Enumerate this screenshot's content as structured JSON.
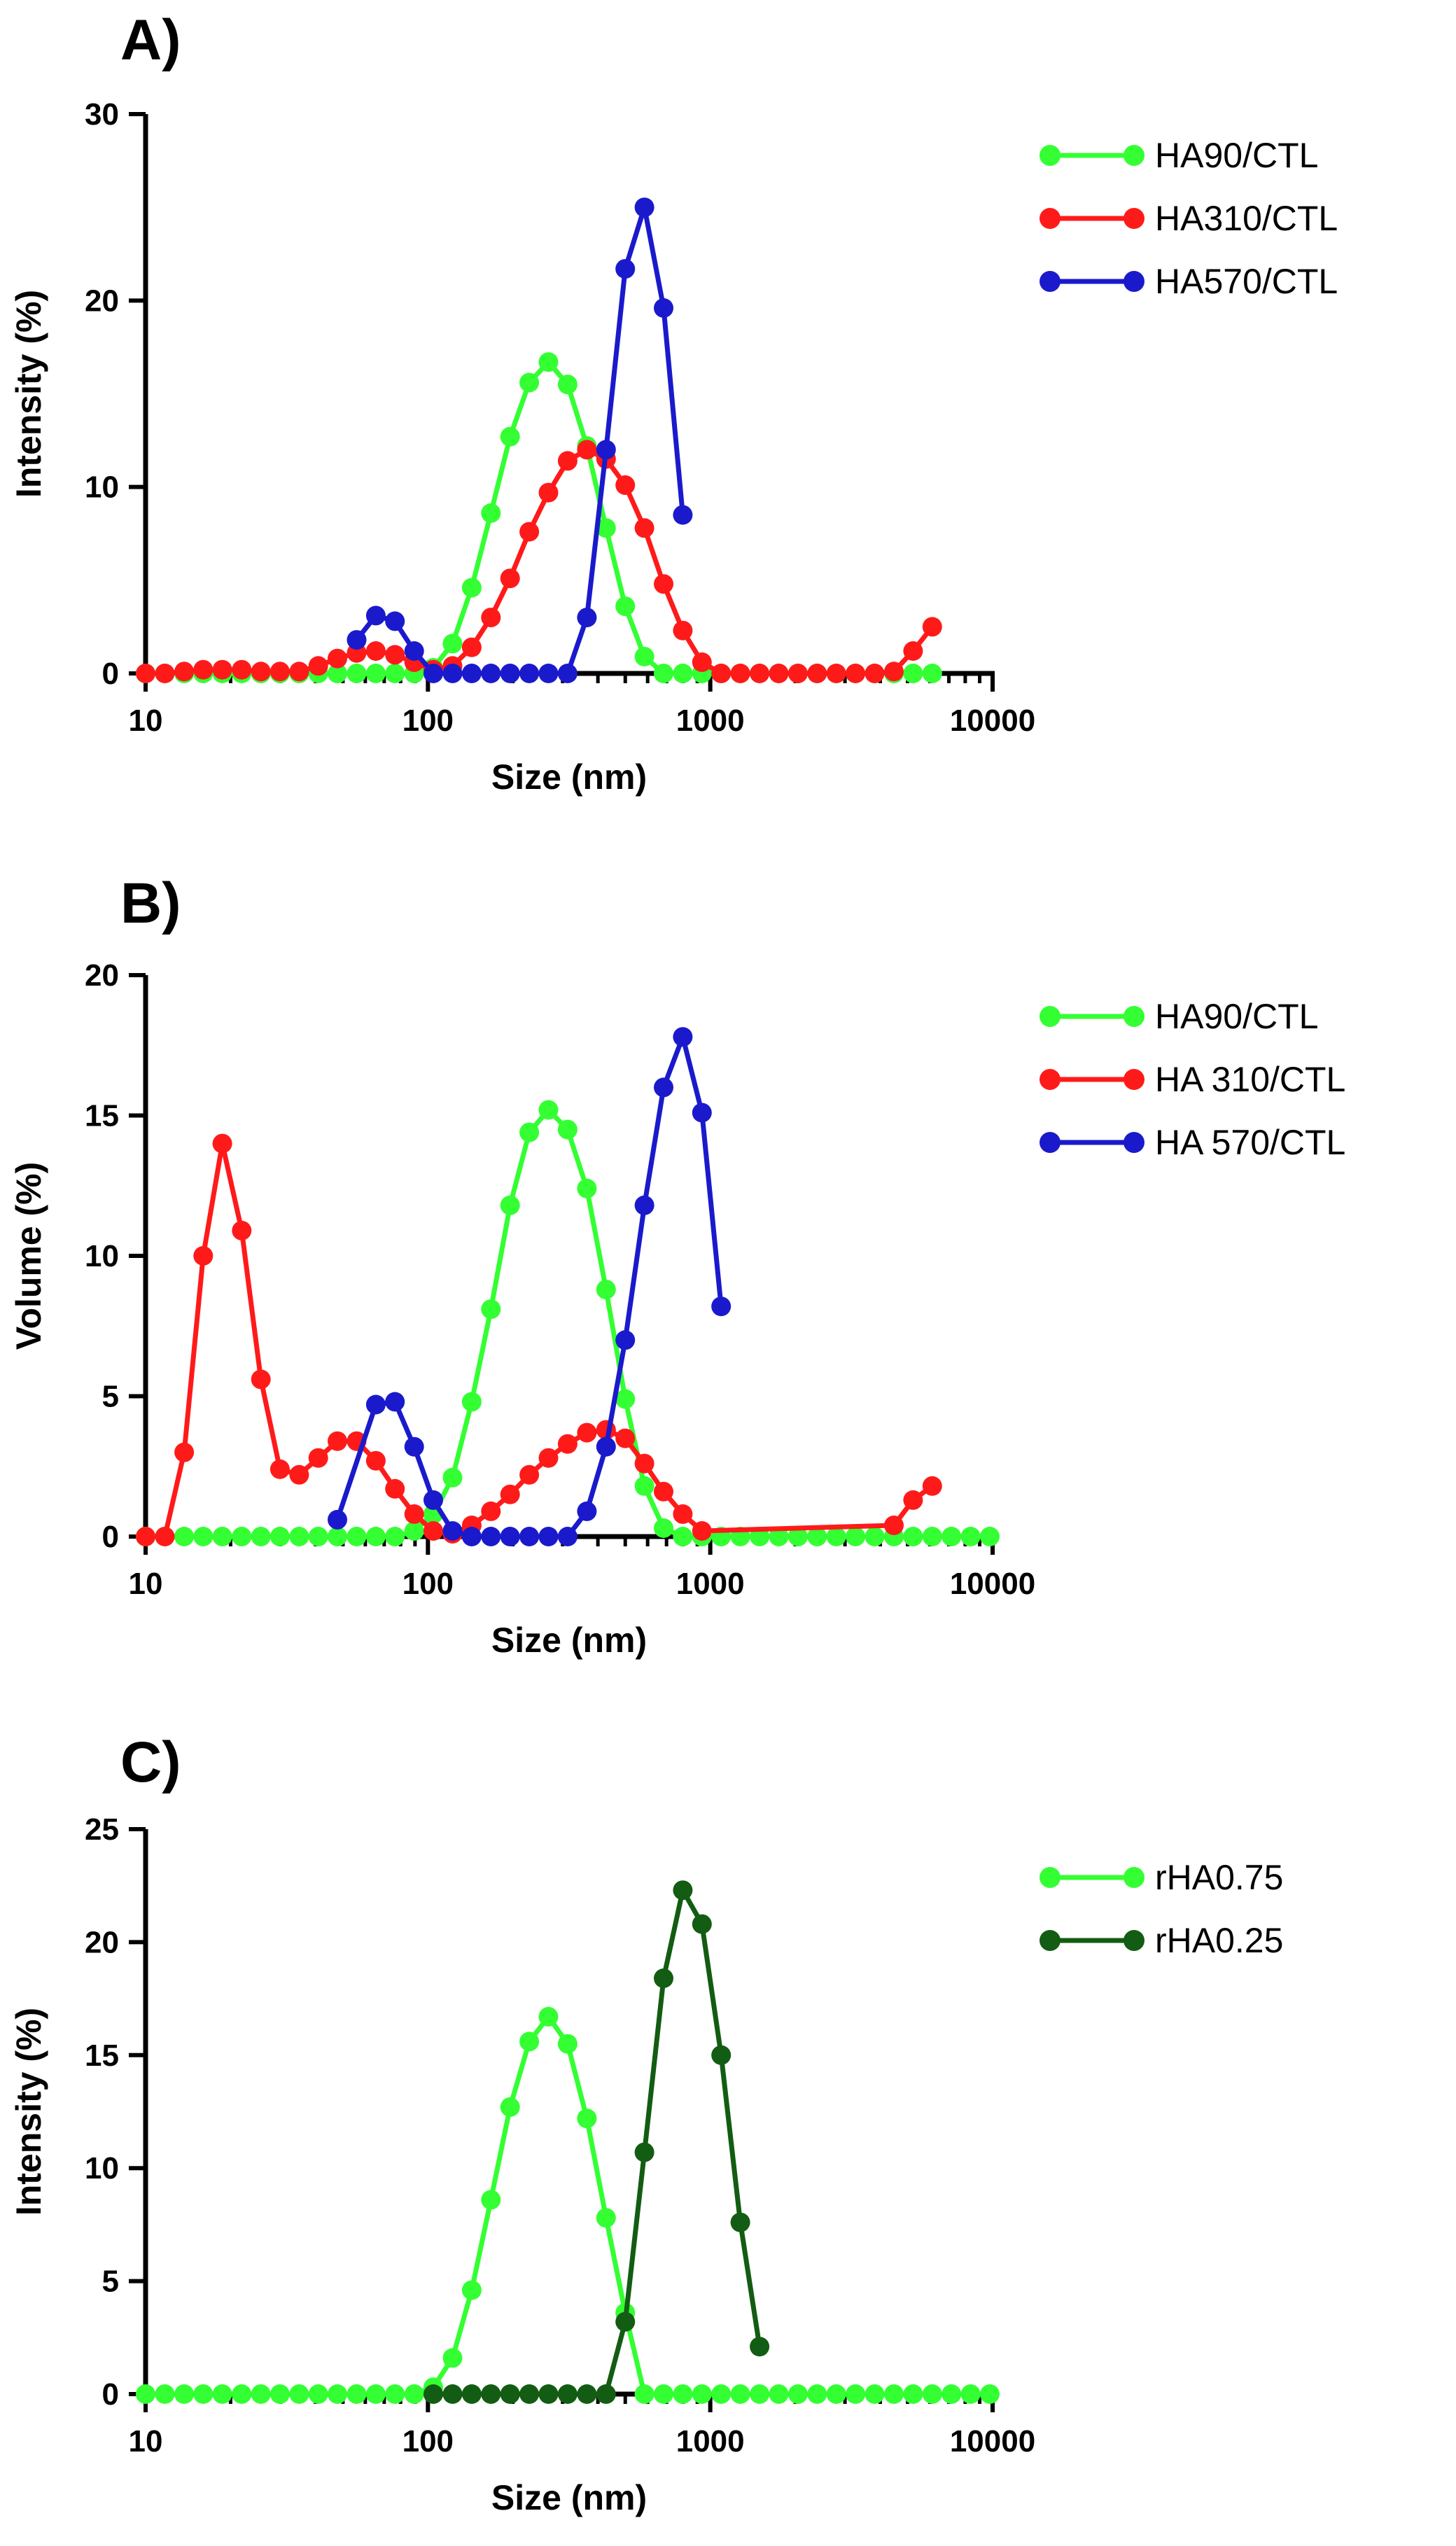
{
  "colors": {
    "green": "#33ff33",
    "red": "#ff1a1a",
    "blue": "#1a1acc",
    "darkgreen": "#135c13"
  },
  "chart_data": [
    {
      "id": "A",
      "panel_label": "A)",
      "type": "line",
      "title": "",
      "xlabel": "Size (nm)",
      "ylabel": "Intensity (%)",
      "xscale": "log",
      "xlim": [
        10,
        10000
      ],
      "ylim": [
        0,
        30
      ],
      "xticks": [
        10,
        100,
        1000,
        10000
      ],
      "xtick_labels": [
        "10",
        "100",
        "1000",
        "10000"
      ],
      "yticks": [
        0,
        10,
        20,
        30
      ],
      "ytick_labels": [
        "0",
        "10",
        "20",
        "30"
      ],
      "grid": false,
      "legend_position": "top-right",
      "series": [
        {
          "name": "HA90/CTL",
          "color": "#33ff33",
          "x": [
            10,
            11.7,
            13.7,
            16,
            18.7,
            21.9,
            25.6,
            29.9,
            35,
            40.9,
            47.8,
            55.9,
            65.4,
            76.4,
            89.4,
            104.5,
            122.2,
            142.9,
            167.1,
            195.4,
            228.5,
            267.2,
            312.5,
            365.5,
            427.4,
            499.8,
            584.5,
            683.5,
            799.3,
            934.7,
            1093,
            1278,
            1495,
            1748,
            2044,
            2390,
            2795,
            3268,
            3822,
            4470,
            5227,
            6112
          ],
          "y": [
            0,
            0,
            0,
            0,
            0,
            0,
            0,
            0,
            0,
            0,
            0,
            0,
            0,
            0,
            0,
            0.3,
            1.6,
            4.6,
            8.6,
            12.7,
            15.6,
            16.7,
            15.5,
            12.2,
            7.8,
            3.6,
            0.9,
            0,
            0,
            0,
            0,
            0,
            0,
            0,
            0,
            0,
            0,
            0,
            0,
            0,
            0,
            0
          ]
        },
        {
          "name": "HA310/CTL",
          "color": "#ff1a1a",
          "x": [
            10,
            11.7,
            13.7,
            16,
            18.7,
            21.9,
            25.6,
            29.9,
            35,
            40.9,
            47.8,
            55.9,
            65.4,
            76.4,
            89.4,
            104.5,
            122.2,
            142.9,
            167.1,
            195.4,
            228.5,
            267.2,
            312.5,
            365.5,
            427.4,
            499.8,
            584.5,
            683.5,
            799.3,
            934.7,
            1093,
            1278,
            1495,
            1748,
            2044,
            2390,
            2795,
            3268,
            3822,
            4470,
            5227,
            6112
          ],
          "y": [
            0,
            0,
            0.1,
            0.2,
            0.2,
            0.2,
            0.1,
            0.1,
            0.1,
            0.4,
            0.8,
            1.1,
            1.2,
            1.0,
            0.6,
            0.2,
            0.4,
            1.4,
            3.0,
            5.1,
            7.6,
            9.7,
            11.4,
            12.0,
            11.5,
            10.1,
            7.8,
            4.8,
            2.3,
            0.6,
            0,
            0,
            0,
            0,
            0,
            0,
            0,
            0,
            0,
            0.1,
            1.2,
            2.5
          ]
        },
        {
          "name": "HA570/CTL",
          "color": "#1a1acc",
          "x": [
            55.9,
            65.4,
            76.4,
            89.4,
            104.5,
            122.2,
            142.9,
            167.1,
            195.4,
            228.5,
            267.2,
            312.5,
            365.5,
            427.4,
            499.8,
            584.5,
            683.5,
            799.3
          ],
          "y": [
            1.8,
            3.1,
            2.8,
            1.2,
            0,
            0,
            0,
            0,
            0,
            0,
            0,
            0,
            3.0,
            12.0,
            21.7,
            25.0,
            19.6,
            8.5
          ]
        }
      ]
    },
    {
      "id": "B",
      "panel_label": "B)",
      "type": "line",
      "title": "",
      "xlabel": "Size (nm)",
      "ylabel": "Volume (%)",
      "xscale": "log",
      "xlim": [
        10,
        10000
      ],
      "ylim": [
        0,
        20
      ],
      "xticks": [
        10,
        100,
        1000,
        10000
      ],
      "xtick_labels": [
        "10",
        "100",
        "1000",
        "10000"
      ],
      "yticks": [
        0,
        5,
        10,
        15,
        20
      ],
      "ytick_labels": [
        "0",
        "5",
        "10",
        "15",
        "20"
      ],
      "grid": false,
      "legend_position": "top-right",
      "series": [
        {
          "name": "HA90/CTL",
          "color": "#33ff33",
          "x": [
            10,
            11.7,
            13.7,
            16,
            18.7,
            21.9,
            25.6,
            29.9,
            35,
            40.9,
            47.8,
            55.9,
            65.4,
            76.4,
            89.4,
            104.5,
            122.2,
            142.9,
            167.1,
            195.4,
            228.5,
            267.2,
            312.5,
            365.5,
            427.4,
            499.8,
            584.5,
            683.5,
            799.3,
            934.7,
            1093,
            1278,
            1495,
            1748,
            2044,
            2390,
            2795,
            3268,
            3822,
            4470,
            5227,
            6112,
            7147,
            8358,
            9772
          ],
          "y": [
            0,
            0,
            0,
            0,
            0,
            0,
            0,
            0,
            0,
            0,
            0,
            0,
            0,
            0,
            0.2,
            0.8,
            2.1,
            4.8,
            8.1,
            11.8,
            14.4,
            15.2,
            14.5,
            12.4,
            8.8,
            4.9,
            1.8,
            0.3,
            0,
            0,
            0,
            0,
            0,
            0,
            0,
            0,
            0,
            0,
            0,
            0,
            0,
            0,
            0,
            0,
            0
          ]
        },
        {
          "name": "HA 310/CTL",
          "color": "#ff1a1a",
          "x": [
            10,
            11.7,
            13.7,
            16,
            18.7,
            21.9,
            25.6,
            29.9,
            35,
            40.9,
            47.8,
            55.9,
            65.4,
            76.4,
            89.4,
            104.5,
            122.2,
            142.9,
            167.1,
            195.4,
            228.5,
            267.2,
            312.5,
            365.5,
            427.4,
            499.8,
            584.5,
            683.5,
            799.3,
            934.7,
            4470,
            5227,
            6112
          ],
          "y": [
            0,
            0,
            3.0,
            10.0,
            14.0,
            10.9,
            5.6,
            2.4,
            2.2,
            2.8,
            3.4,
            3.4,
            2.7,
            1.7,
            0.8,
            0.2,
            0.1,
            0.4,
            0.9,
            1.5,
            2.2,
            2.8,
            3.3,
            3.7,
            3.8,
            3.5,
            2.6,
            1.6,
            0.8,
            0.2,
            0.4,
            1.3,
            1.8
          ]
        },
        {
          "name": "HA 570/CTL",
          "color": "#1a1acc",
          "x": [
            47.8,
            65.4,
            76.4,
            89.4,
            104.5,
            122.2,
            142.9,
            167.1,
            195.4,
            228.5,
            267.2,
            312.5,
            365.5,
            427.4,
            499.8,
            584.5,
            683.5,
            799.3,
            934.7,
            1093
          ],
          "y": [
            0.6,
            4.7,
            4.8,
            3.2,
            1.3,
            0.2,
            0,
            0,
            0,
            0,
            0,
            0,
            0.9,
            3.2,
            7.0,
            11.8,
            16.0,
            17.8,
            15.1,
            8.2
          ]
        }
      ]
    },
    {
      "id": "C",
      "panel_label": "C)",
      "type": "line",
      "title": "",
      "xlabel": "Size (nm)",
      "ylabel": "Intensity (%)",
      "xscale": "log",
      "xlim": [
        10,
        10000
      ],
      "ylim": [
        0,
        25
      ],
      "xticks": [
        10,
        100,
        1000,
        10000
      ],
      "xtick_labels": [
        "10",
        "100",
        "1000",
        "10000"
      ],
      "yticks": [
        0,
        5,
        10,
        15,
        20,
        25
      ],
      "ytick_labels": [
        "0",
        "5",
        "10",
        "15",
        "20",
        "25"
      ],
      "grid": false,
      "legend_position": "top-right",
      "series": [
        {
          "name": "rHA0.75",
          "color": "#33ff33",
          "x": [
            10,
            11.7,
            13.7,
            16,
            18.7,
            21.9,
            25.6,
            29.9,
            35,
            40.9,
            47.8,
            55.9,
            65.4,
            76.4,
            89.4,
            104.5,
            122.2,
            142.9,
            167.1,
            195.4,
            228.5,
            267.2,
            312.5,
            365.5,
            427.4,
            499.8,
            584.5,
            683.5,
            799.3,
            934.7,
            1093,
            1278,
            1495,
            1748,
            2044,
            2390,
            2795,
            3268,
            3822,
            4470,
            5227,
            6112,
            7147,
            8358,
            9772
          ],
          "y": [
            0,
            0,
            0,
            0,
            0,
            0,
            0,
            0,
            0,
            0,
            0,
            0,
            0,
            0,
            0,
            0.3,
            1.6,
            4.6,
            8.6,
            12.7,
            15.6,
            16.7,
            15.5,
            12.2,
            7.8,
            3.6,
            0,
            0,
            0,
            0,
            0,
            0,
            0,
            0,
            0,
            0,
            0,
            0,
            0,
            0,
            0,
            0,
            0,
            0,
            0
          ]
        },
        {
          "name": "rHA0.25",
          "color": "#135c13",
          "x": [
            104.5,
            122.2,
            142.9,
            167.1,
            195.4,
            228.5,
            267.2,
            312.5,
            365.5,
            427.4,
            499.8,
            584.5,
            683.5,
            799.3,
            934.7,
            1093,
            1278,
            1495
          ],
          "y": [
            0,
            0,
            0,
            0,
            0,
            0,
            0,
            0,
            0,
            0,
            3.2,
            10.7,
            18.4,
            22.3,
            20.8,
            15.0,
            7.6,
            2.1
          ]
        }
      ]
    }
  ]
}
